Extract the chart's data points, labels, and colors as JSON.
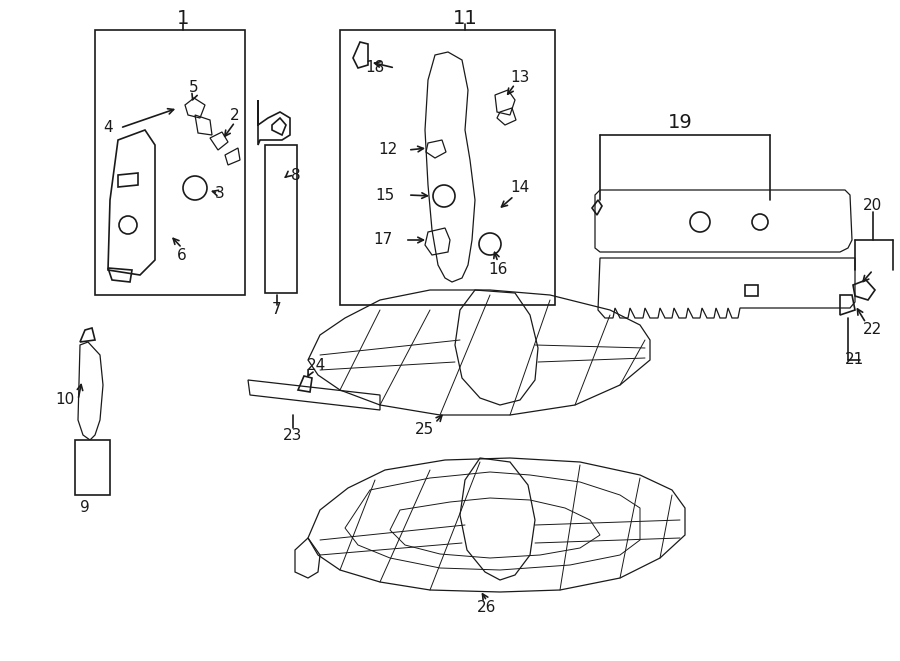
{
  "bg_color": "#ffffff",
  "lc": "#1a1a1a",
  "lw": 1.2,
  "fig_w": 9.0,
  "fig_h": 6.61,
  "dpi": 100
}
